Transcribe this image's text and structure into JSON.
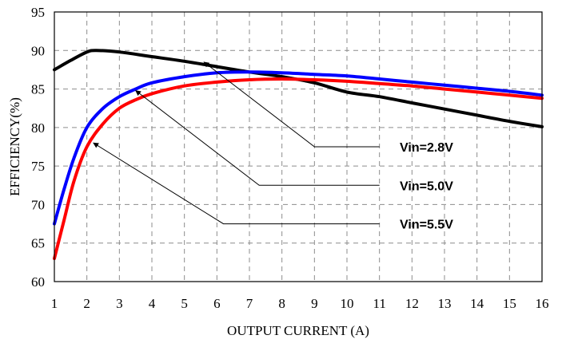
{
  "chart_data": {
    "type": "line",
    "title": "",
    "xlabel": "OUTPUT CURRENT (A)",
    "ylabel": "EFFICIENCY(%)",
    "xlim": [
      1,
      16
    ],
    "ylim": [
      60,
      95
    ],
    "x_ticks": [
      1,
      2,
      3,
      4,
      5,
      6,
      7,
      8,
      9,
      10,
      11,
      12,
      13,
      14,
      15,
      16
    ],
    "y_ticks": [
      60,
      65,
      70,
      75,
      80,
      85,
      90,
      95
    ],
    "grid": true,
    "series": [
      {
        "name": "Vin=2.8V",
        "color": "#000000",
        "x": [
          1,
          1.5,
          2,
          2.3,
          3,
          4,
          5,
          6,
          7,
          8,
          9,
          10,
          11,
          12,
          13,
          14,
          15,
          16
        ],
        "y": [
          87.5,
          88.7,
          89.8,
          90.0,
          89.8,
          89.2,
          88.6,
          87.9,
          87.2,
          86.6,
          85.8,
          84.6,
          84.0,
          83.2,
          82.4,
          81.6,
          80.8,
          80.1
        ],
        "annotation": {
          "label": "Vin=2.8V",
          "point": [
            5.6,
            88.5
          ]
        }
      },
      {
        "name": "Vin=5.0V",
        "color": "#0000ff",
        "x": [
          1,
          1.3,
          1.6,
          2,
          2.5,
          3,
          3.5,
          4,
          5,
          6,
          7,
          8,
          9,
          10,
          11,
          12,
          13,
          14,
          15,
          16
        ],
        "y": [
          67.5,
          72,
          76,
          80,
          82.5,
          84,
          85,
          85.8,
          86.6,
          87.1,
          87.2,
          87.1,
          86.9,
          86.7,
          86.3,
          85.9,
          85.5,
          85.1,
          84.7,
          84.2
        ],
        "annotation": {
          "label": "Vin=5.0V",
          "point": [
            3.5,
            84.8
          ]
        }
      },
      {
        "name": "Vin=5.5V",
        "color": "#ff0000",
        "x": [
          1,
          1.3,
          1.6,
          2,
          2.5,
          3,
          3.5,
          4,
          5,
          6,
          7,
          8,
          9,
          10,
          11,
          12,
          13,
          14,
          15,
          16
        ],
        "y": [
          63,
          68,
          73,
          77.5,
          80.5,
          82.5,
          83.6,
          84.4,
          85.4,
          85.9,
          86.2,
          86.3,
          86.2,
          86.0,
          85.7,
          85.4,
          85.0,
          84.6,
          84.2,
          83.8
        ],
        "annotation": {
          "label": "Vin=5.5V",
          "point": [
            2.2,
            78.0
          ]
        }
      }
    ],
    "leader_lines": [
      {
        "series": "Vin=2.8V",
        "from": [
          11,
          77.5
        ],
        "knee": [
          9,
          77.5
        ],
        "to": [
          5.6,
          88.5
        ]
      },
      {
        "series": "Vin=5.0V",
        "from": [
          11,
          72.5
        ],
        "knee": [
          7.3,
          72.5
        ],
        "to": [
          3.5,
          84.8
        ]
      },
      {
        "series": "Vin=5.5V",
        "from": [
          11,
          67.5
        ],
        "knee": [
          6.2,
          67.5
        ],
        "to": [
          2.2,
          78.0
        ]
      }
    ]
  }
}
